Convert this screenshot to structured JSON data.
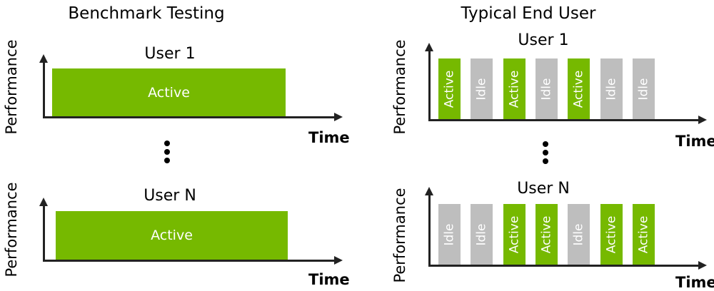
{
  "headings": {
    "left": "Benchmark Testing",
    "right": "Typical End User"
  },
  "axis": {
    "ylabel": "Performance",
    "xlabel": "Time"
  },
  "users": {
    "first": "User 1",
    "last": "User N"
  },
  "colors": {
    "active": "#76b900",
    "idle": "#bebebe"
  },
  "benchmark": {
    "top": {
      "label": "Active"
    },
    "bottom": {
      "label": "Active"
    }
  },
  "typical": {
    "top": [
      "Active",
      "Idle",
      "Active",
      "Idle",
      "Active",
      "Idle",
      "Idle"
    ],
    "bottom": [
      "Idle",
      "Idle",
      "Active",
      "Active",
      "Idle",
      "Active",
      "Active"
    ]
  }
}
